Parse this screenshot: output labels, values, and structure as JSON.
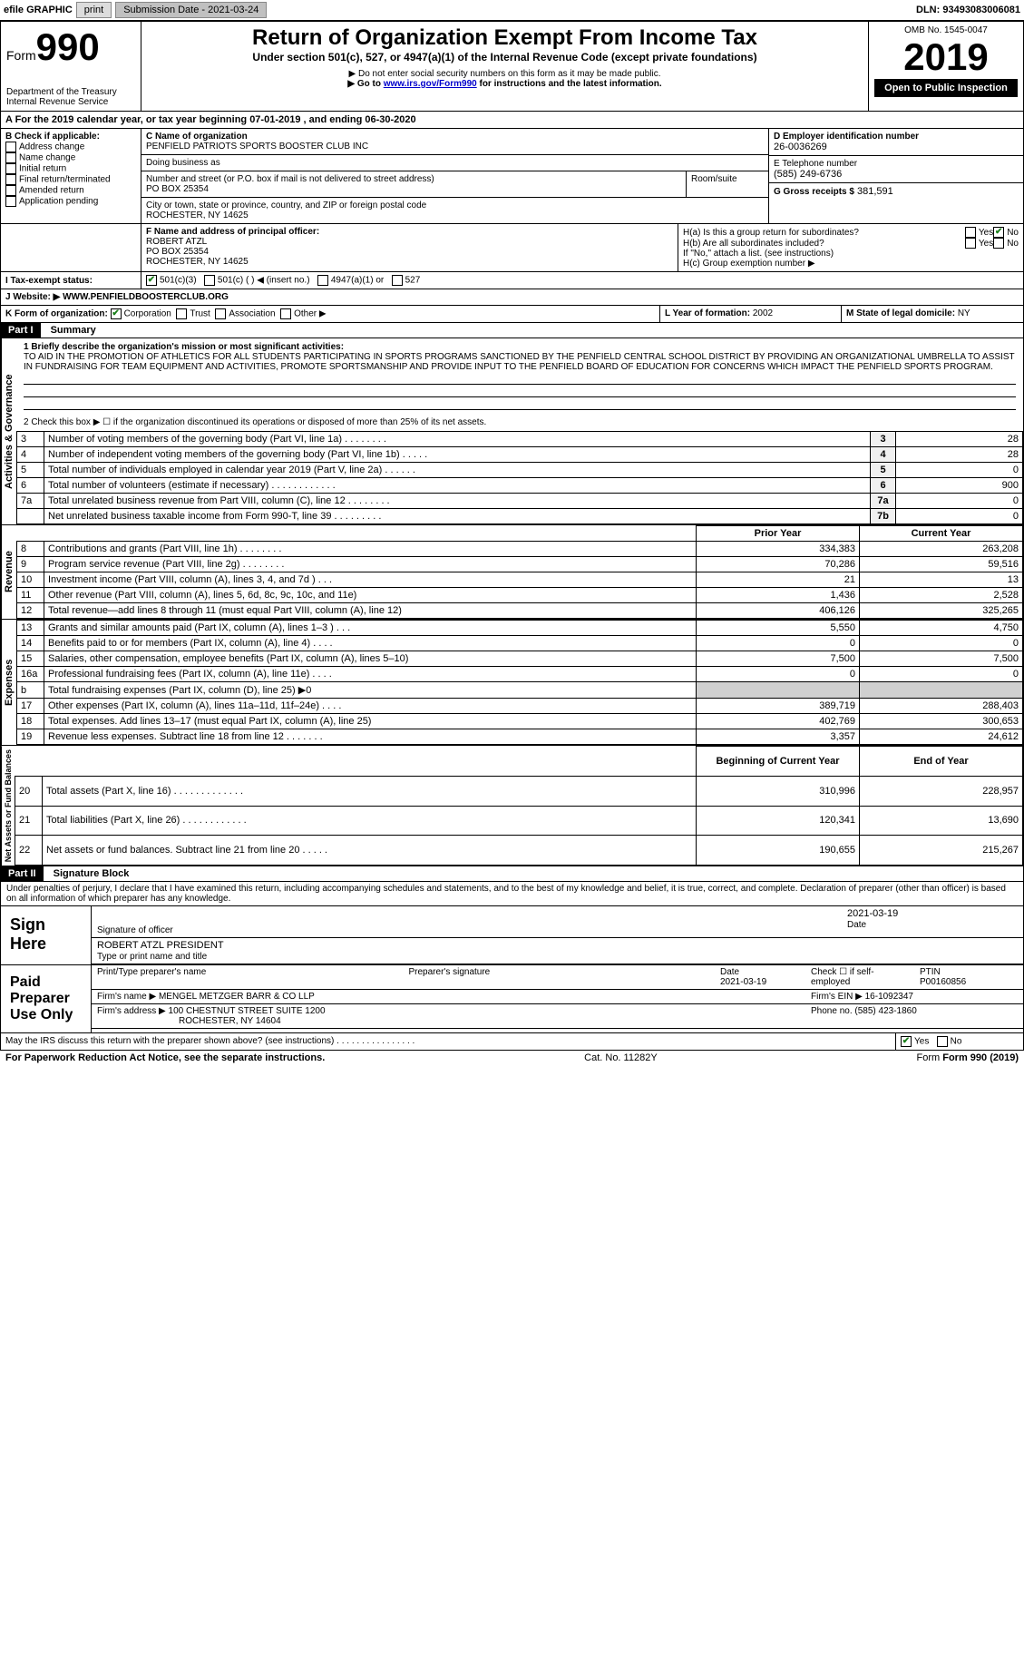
{
  "topbar": {
    "efile_label": "efile GRAPHIC",
    "print_btn": "print",
    "submission_label": "Submission Date - 2021-03-24",
    "dln": "DLN: 93493083006081"
  },
  "header": {
    "form_word": "Form",
    "form_number": "990",
    "dept": "Department of the Treasury",
    "irs": "Internal Revenue Service",
    "title": "Return of Organization Exempt From Income Tax",
    "subtitle": "Under section 501(c), 527, or 4947(a)(1) of the Internal Revenue Code (except private foundations)",
    "note1": "▶ Do not enter social security numbers on this form as it may be made public.",
    "note2_pre": "▶ Go to ",
    "note2_link": "www.irs.gov/Form990",
    "note2_post": " for instructions and the latest information.",
    "omb": "OMB No. 1545-0047",
    "year": "2019",
    "inspection": "Open to Public Inspection"
  },
  "period": {
    "line_a": "A For the 2019 calendar year, or tax year beginning 07-01-2019   , and ending 06-30-2020"
  },
  "box_b": {
    "label": "B Check if applicable:",
    "items": [
      "Address change",
      "Name change",
      "Initial return",
      "Final return/terminated",
      "Amended return",
      "Application pending"
    ]
  },
  "box_c": {
    "label": "C Name of organization",
    "name": "PENFIELD PATRIOTS SPORTS BOOSTER CLUB INC",
    "dba_label": "Doing business as",
    "addr_label": "Number and street (or P.O. box if mail is not delivered to street address)",
    "room_label": "Room/suite",
    "addr": "PO BOX 25354",
    "city_label": "City or town, state or province, country, and ZIP or foreign postal code",
    "city": "ROCHESTER, NY  14625"
  },
  "box_d": {
    "label": "D Employer identification number",
    "value": "26-0036269"
  },
  "box_e": {
    "label": "E Telephone number",
    "value": "(585) 249-6736"
  },
  "box_g": {
    "label": "G Gross receipts $",
    "value": "381,591"
  },
  "box_f": {
    "label": "F Name and address of principal officer:",
    "name": "ROBERT ATZL",
    "addr1": "PO BOX 25354",
    "addr2": "ROCHESTER, NY  14625"
  },
  "box_h": {
    "ha": "H(a)  Is this a group return for subordinates?",
    "hb": "H(b)  Are all subordinates included?",
    "hb_note": "If \"No,\" attach a list. (see instructions)",
    "hc": "H(c)  Group exemption number ▶",
    "yes": "Yes",
    "no": "No"
  },
  "box_i": {
    "label": "I  Tax-exempt status:",
    "opts": [
      "501(c)(3)",
      "501(c) (   ) ◀ (insert no.)",
      "4947(a)(1) or",
      "527"
    ]
  },
  "box_j": {
    "label": "J  Website: ▶",
    "value": "WWW.PENFIELDBOOSTERCLUB.ORG"
  },
  "box_k": {
    "label": "K Form of organization:",
    "opts": [
      "Corporation",
      "Trust",
      "Association",
      "Other ▶"
    ]
  },
  "box_l": {
    "label": "L Year of formation:",
    "value": "2002"
  },
  "box_m": {
    "label": "M State of legal domicile:",
    "value": "NY"
  },
  "part1": {
    "bar": "Part I",
    "title": "Summary",
    "q1_label": "1  Briefly describe the organization's mission or most significant activities:",
    "q1_text": "TO AID IN THE PROMOTION OF ATHLETICS FOR ALL STUDENTS PARTICIPATING IN SPORTS PROGRAMS SANCTIONED BY THE PENFIELD CENTRAL SCHOOL DISTRICT BY PROVIDING AN ORGANIZATIONAL UMBRELLA TO ASSIST IN FUNDRAISING FOR TEAM EQUIPMENT AND ACTIVITIES, PROMOTE SPORTSMANSHIP AND PROVIDE INPUT TO THE PENFIELD BOARD OF EDUCATION FOR CONCERNS WHICH IMPACT THE PENFIELD SPORTS PROGRAM.",
    "q2": "2  Check this box ▶ ☐ if the organization discontinued its operations or disposed of more than 25% of its net assets.",
    "vlabel_gov": "Activities & Governance",
    "vlabel_rev": "Revenue",
    "vlabel_exp": "Expenses",
    "vlabel_net": "Net Assets or Fund Balances",
    "gov_rows": [
      {
        "n": "3",
        "t": "Number of voting members of the governing body (Part VI, line 1a)  .   .   .   .   .   .   .   .",
        "box": "3",
        "v": "28"
      },
      {
        "n": "4",
        "t": "Number of independent voting members of the governing body (Part VI, line 1b)  .   .   .   .   .",
        "box": "4",
        "v": "28"
      },
      {
        "n": "5",
        "t": "Total number of individuals employed in calendar year 2019 (Part V, line 2a)  .   .   .   .   .   .",
        "box": "5",
        "v": "0"
      },
      {
        "n": "6",
        "t": "Total number of volunteers (estimate if necessary)  .   .   .   .   .   .   .   .   .   .   .   .",
        "box": "6",
        "v": "900"
      },
      {
        "n": "7a",
        "t": "Total unrelated business revenue from Part VIII, column (C), line 12  .   .   .   .   .   .   .   .",
        "box": "7a",
        "v": "0"
      },
      {
        "n": "",
        "t": "Net unrelated business taxable income from Form 990-T, line 39  .   .   .   .   .   .   .   .   .",
        "box": "7b",
        "v": "0"
      }
    ],
    "col_prior": "Prior Year",
    "col_current": "Current Year",
    "rev_rows": [
      {
        "n": "8",
        "t": "Contributions and grants (Part VIII, line 1h)  .   .   .   .   .   .   .   .",
        "p": "334,383",
        "c": "263,208"
      },
      {
        "n": "9",
        "t": "Program service revenue (Part VIII, line 2g)  .   .   .   .   .   .   .   .",
        "p": "70,286",
        "c": "59,516"
      },
      {
        "n": "10",
        "t": "Investment income (Part VIII, column (A), lines 3, 4, and 7d )  .   .   .",
        "p": "21",
        "c": "13"
      },
      {
        "n": "11",
        "t": "Other revenue (Part VIII, column (A), lines 5, 6d, 8c, 9c, 10c, and 11e)",
        "p": "1,436",
        "c": "2,528"
      },
      {
        "n": "12",
        "t": "Total revenue—add lines 8 through 11 (must equal Part VIII, column (A), line 12)",
        "p": "406,126",
        "c": "325,265"
      }
    ],
    "exp_rows": [
      {
        "n": "13",
        "t": "Grants and similar amounts paid (Part IX, column (A), lines 1–3 )  .   .   .",
        "p": "5,550",
        "c": "4,750"
      },
      {
        "n": "14",
        "t": "Benefits paid to or for members (Part IX, column (A), line 4)  .   .   .   .",
        "p": "0",
        "c": "0"
      },
      {
        "n": "15",
        "t": "Salaries, other compensation, employee benefits (Part IX, column (A), lines 5–10)",
        "p": "7,500",
        "c": "7,500"
      },
      {
        "n": "16a",
        "t": "Professional fundraising fees (Part IX, column (A), line 11e)  .   .   .   .",
        "p": "0",
        "c": "0"
      },
      {
        "n": "b",
        "t": "Total fundraising expenses (Part IX, column (D), line 25) ▶0",
        "p": "",
        "c": "",
        "shade": true
      },
      {
        "n": "17",
        "t": "Other expenses (Part IX, column (A), lines 11a–11d, 11f–24e)  .   .   .   .",
        "p": "389,719",
        "c": "288,403"
      },
      {
        "n": "18",
        "t": "Total expenses. Add lines 13–17 (must equal Part IX, column (A), line 25)",
        "p": "402,769",
        "c": "300,653"
      },
      {
        "n": "19",
        "t": "Revenue less expenses. Subtract line 18 from line 12  .   .   .   .   .   .   .",
        "p": "3,357",
        "c": "24,612"
      }
    ],
    "col_begin": "Beginning of Current Year",
    "col_end": "End of Year",
    "net_rows": [
      {
        "n": "20",
        "t": "Total assets (Part X, line 16)  .   .   .   .   .   .   .   .   .   .   .   .   .",
        "p": "310,996",
        "c": "228,957"
      },
      {
        "n": "21",
        "t": "Total liabilities (Part X, line 26)  .   .   .   .   .   .   .   .   .   .   .   .",
        "p": "120,341",
        "c": "13,690"
      },
      {
        "n": "22",
        "t": "Net assets or fund balances. Subtract line 21 from line 20  .   .   .   .   .",
        "p": "190,655",
        "c": "215,267"
      }
    ]
  },
  "part2": {
    "bar": "Part II",
    "title": "Signature Block",
    "perjury": "Under penalties of perjury, I declare that I have examined this return, including accompanying schedules and statements, and to the best of my knowledge and belief, it is true, correct, and complete. Declaration of preparer (other than officer) is based on all information of which preparer has any knowledge.",
    "sign_here": "Sign Here",
    "sig_officer": "Signature of officer",
    "sig_date": "2021-03-19",
    "date_label": "Date",
    "officer_name": "ROBERT ATZL PRESIDENT",
    "type_name": "Type or print name and title",
    "paid_label": "Paid Preparer Use Only",
    "prep_name_label": "Print/Type preparer's name",
    "prep_sig_label": "Preparer's signature",
    "prep_date_label": "Date",
    "prep_date": "2021-03-19",
    "check_self": "Check ☐ if self-employed",
    "ptin_label": "PTIN",
    "ptin": "P00160856",
    "firm_name_label": "Firm's name   ▶",
    "firm_name": "MENGEL METZGER BARR & CO LLP",
    "firm_ein_label": "Firm's EIN ▶",
    "firm_ein": "16-1092347",
    "firm_addr_label": "Firm's address ▶",
    "firm_addr1": "100 CHESTNUT STREET SUITE 1200",
    "firm_addr2": "ROCHESTER, NY  14604",
    "firm_phone_label": "Phone no.",
    "firm_phone": "(585) 423-1860",
    "discuss": "May the IRS discuss this return with the preparer shown above? (see instructions)  .   .   .   .   .   .   .   .   .   .   .   .   .   .   .   .",
    "discuss_yes": "Yes",
    "discuss_no": "No"
  },
  "footer": {
    "paperwork": "For Paperwork Reduction Act Notice, see the separate instructions.",
    "cat": "Cat. No. 11282Y",
    "form": "Form 990 (2019)"
  }
}
